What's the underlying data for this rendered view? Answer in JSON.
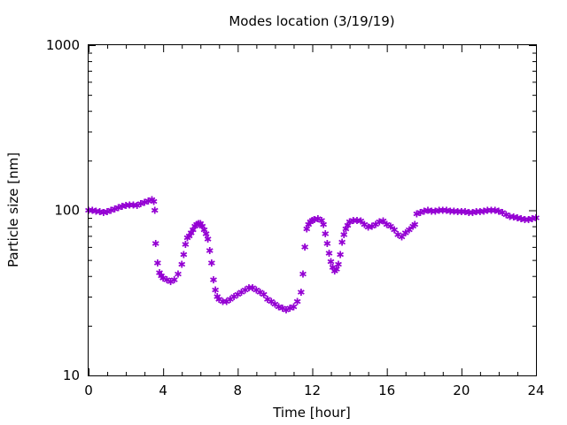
{
  "chart_data": {
    "type": "scatter",
    "title": "Modes location (3/19/19)",
    "xlabel": "Time [hour]",
    "ylabel": "Particle size [nm]",
    "xlim": [
      0,
      24
    ],
    "ylim": [
      10,
      1000
    ],
    "yscale": "log",
    "grid": false,
    "legend": "none",
    "marker_color": "#9400d3",
    "marker_glyph": "✱",
    "x_ticks": [
      0,
      4,
      8,
      12,
      16,
      20,
      24
    ],
    "x_tick_labels": [
      "0",
      "4",
      "8",
      "12",
      "16",
      "20",
      "24"
    ],
    "y_ticks": [
      10,
      100,
      1000
    ],
    "y_tick_labels": [
      "10",
      "100",
      "1000"
    ],
    "points": [
      [
        0.0,
        100
      ],
      [
        0.2,
        100
      ],
      [
        0.4,
        99
      ],
      [
        0.6,
        98
      ],
      [
        0.8,
        97
      ],
      [
        1.0,
        98
      ],
      [
        1.2,
        100
      ],
      [
        1.4,
        102
      ],
      [
        1.6,
        104
      ],
      [
        1.8,
        106
      ],
      [
        2.0,
        107
      ],
      [
        2.2,
        108
      ],
      [
        2.4,
        108
      ],
      [
        2.6,
        107
      ],
      [
        2.8,
        110
      ],
      [
        3.0,
        112
      ],
      [
        3.2,
        114
      ],
      [
        3.4,
        116
      ],
      [
        3.5,
        113
      ],
      [
        3.55,
        100
      ],
      [
        3.6,
        63
      ],
      [
        3.7,
        48
      ],
      [
        3.8,
        42
      ],
      [
        3.9,
        40
      ],
      [
        4.0,
        39
      ],
      [
        4.2,
        38
      ],
      [
        4.4,
        37
      ],
      [
        4.6,
        38
      ],
      [
        4.8,
        41
      ],
      [
        5.0,
        47
      ],
      [
        5.1,
        54
      ],
      [
        5.2,
        62
      ],
      [
        5.3,
        68
      ],
      [
        5.4,
        70
      ],
      [
        5.5,
        73
      ],
      [
        5.6,
        76
      ],
      [
        5.7,
        80
      ],
      [
        5.8,
        82
      ],
      [
        5.9,
        83
      ],
      [
        6.0,
        83
      ],
      [
        6.1,
        80
      ],
      [
        6.2,
        76
      ],
      [
        6.3,
        72
      ],
      [
        6.4,
        67
      ],
      [
        6.5,
        57
      ],
      [
        6.6,
        48
      ],
      [
        6.7,
        38
      ],
      [
        6.8,
        33
      ],
      [
        6.9,
        30
      ],
      [
        7.0,
        29
      ],
      [
        7.2,
        28
      ],
      [
        7.4,
        28
      ],
      [
        7.6,
        29
      ],
      [
        7.8,
        30
      ],
      [
        8.0,
        31
      ],
      [
        8.2,
        32
      ],
      [
        8.4,
        33
      ],
      [
        8.6,
        34
      ],
      [
        8.8,
        34
      ],
      [
        9.0,
        33
      ],
      [
        9.2,
        32
      ],
      [
        9.4,
        31
      ],
      [
        9.6,
        29
      ],
      [
        9.8,
        28
      ],
      [
        10.0,
        27
      ],
      [
        10.2,
        26
      ],
      [
        10.4,
        25.5
      ],
      [
        10.6,
        25
      ],
      [
        10.8,
        25.5
      ],
      [
        11.0,
        26
      ],
      [
        11.2,
        28
      ],
      [
        11.4,
        32
      ],
      [
        11.5,
        41
      ],
      [
        11.6,
        60
      ],
      [
        11.7,
        77
      ],
      [
        11.8,
        82
      ],
      [
        11.9,
        85
      ],
      [
        12.0,
        87
      ],
      [
        12.1,
        88
      ],
      [
        12.3,
        89
      ],
      [
        12.5,
        87
      ],
      [
        12.6,
        82
      ],
      [
        12.7,
        72
      ],
      [
        12.8,
        63
      ],
      [
        12.9,
        55
      ],
      [
        13.0,
        49
      ],
      [
        13.1,
        45
      ],
      [
        13.2,
        43
      ],
      [
        13.3,
        44
      ],
      [
        13.4,
        47
      ],
      [
        13.5,
        54
      ],
      [
        13.6,
        64
      ],
      [
        13.7,
        71
      ],
      [
        13.8,
        77
      ],
      [
        13.9,
        81
      ],
      [
        14.0,
        85
      ],
      [
        14.2,
        87
      ],
      [
        14.4,
        87
      ],
      [
        14.6,
        86
      ],
      [
        14.8,
        82
      ],
      [
        15.0,
        79
      ],
      [
        15.2,
        80
      ],
      [
        15.4,
        82
      ],
      [
        15.6,
        85
      ],
      [
        15.8,
        86
      ],
      [
        16.0,
        82
      ],
      [
        16.2,
        80
      ],
      [
        16.4,
        76
      ],
      [
        16.6,
        71
      ],
      [
        16.8,
        69
      ],
      [
        17.0,
        73
      ],
      [
        17.2,
        76
      ],
      [
        17.4,
        80
      ],
      [
        17.5,
        82
      ],
      [
        17.6,
        95
      ],
      [
        17.8,
        97
      ],
      [
        18.0,
        99
      ],
      [
        18.2,
        100
      ],
      [
        18.4,
        99
      ],
      [
        18.6,
        99
      ],
      [
        18.8,
        100
      ],
      [
        19.0,
        100
      ],
      [
        19.2,
        100
      ],
      [
        19.4,
        99
      ],
      [
        19.6,
        99
      ],
      [
        19.8,
        98
      ],
      [
        20.0,
        98
      ],
      [
        20.2,
        98
      ],
      [
        20.4,
        97
      ],
      [
        20.6,
        97
      ],
      [
        20.8,
        98
      ],
      [
        21.0,
        98
      ],
      [
        21.2,
        99
      ],
      [
        21.4,
        100
      ],
      [
        21.6,
        100
      ],
      [
        21.8,
        100
      ],
      [
        22.0,
        99
      ],
      [
        22.2,
        97
      ],
      [
        22.4,
        94
      ],
      [
        22.6,
        92
      ],
      [
        22.8,
        91
      ],
      [
        23.0,
        90
      ],
      [
        23.2,
        89
      ],
      [
        23.4,
        88
      ],
      [
        23.6,
        88
      ],
      [
        23.8,
        89
      ],
      [
        24.0,
        90
      ]
    ]
  }
}
